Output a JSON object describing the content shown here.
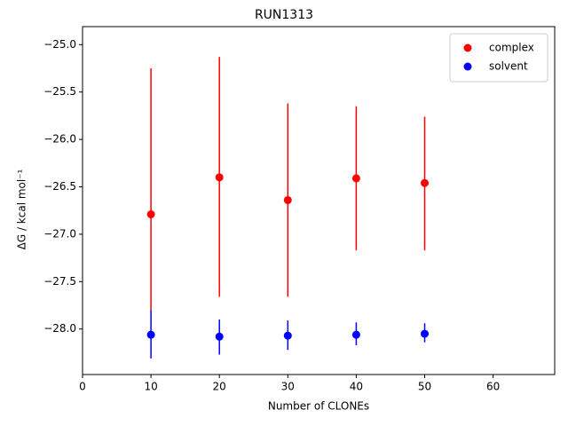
{
  "chart_data": {
    "type": "errorbar-scatter",
    "title": "RUN1313",
    "xlabel": "Number of CLONEs",
    "ylabel": "ΔG / kcal mol⁻¹",
    "xlim": [
      0,
      69
    ],
    "ylim": [
      -28.48,
      -24.81
    ],
    "xticks": [
      0,
      10,
      20,
      30,
      40,
      50,
      60
    ],
    "yticks": [
      {
        "value": -25.0,
        "label": "−25.0"
      },
      {
        "value": -25.5,
        "label": "−25.5"
      },
      {
        "value": -26.0,
        "label": "−26.0"
      },
      {
        "value": -26.5,
        "label": "−26.5"
      },
      {
        "value": -27.0,
        "label": "−27.0"
      },
      {
        "value": -27.5,
        "label": "−27.5"
      },
      {
        "value": -28.0,
        "label": "−28.0"
      }
    ],
    "legend": "upper right",
    "series": [
      {
        "name": "complex",
        "color": "#ff0000",
        "x": [
          10,
          20,
          30,
          40,
          50
        ],
        "values": [
          -26.79,
          -26.4,
          -26.64,
          -26.41,
          -26.46
        ],
        "errors_minus": [
          1.01,
          1.26,
          1.02,
          0.76,
          0.71
        ],
        "errors_plus": [
          1.54,
          1.27,
          1.02,
          0.76,
          0.7
        ]
      },
      {
        "name": "solvent",
        "color": "#0000ff",
        "x": [
          10,
          20,
          30,
          40,
          50
        ],
        "values": [
          -28.06,
          -28.08,
          -28.07,
          -28.06,
          -28.05
        ],
        "errors_minus": [
          0.25,
          0.19,
          0.15,
          0.11,
          0.09
        ],
        "errors_plus": [
          0.26,
          0.18,
          0.16,
          0.13,
          0.11
        ]
      }
    ]
  }
}
